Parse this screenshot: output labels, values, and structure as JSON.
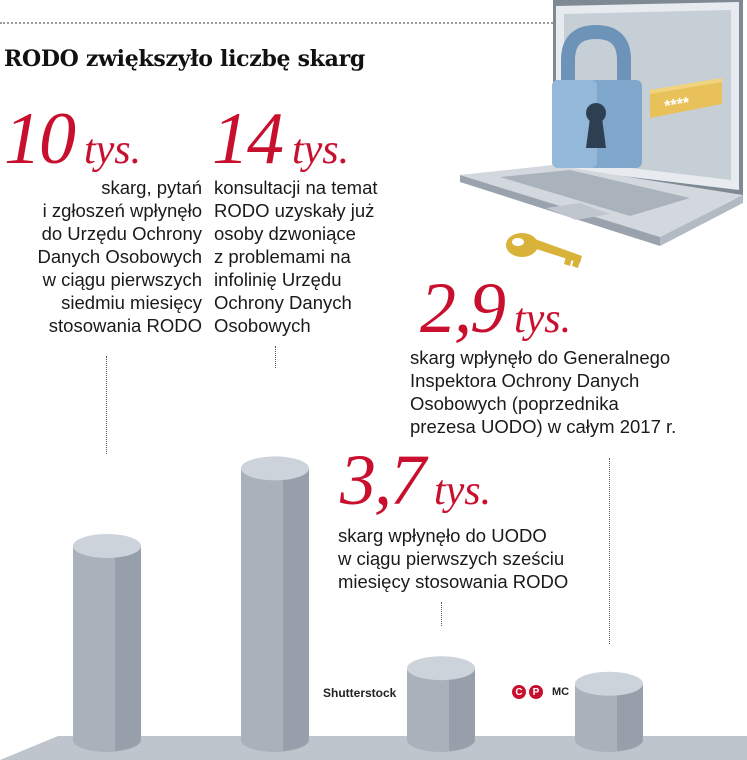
{
  "headline": "RODO zwiększyło liczbę skarg",
  "stats": [
    {
      "value": "10",
      "unit": "tys.",
      "lines": [
        "skarg, pytań",
        "i zgłoszeń wpłynęło",
        "do Urzędu Ochrony",
        "Danych Osobowych",
        "w ciągu pierwszych",
        "siedmiu miesięcy",
        "stosowania RODO"
      ]
    },
    {
      "value": "14",
      "unit": "tys.",
      "lines": [
        "konsultacji na temat",
        "RODO uzyskały już",
        "osoby dzwoniące",
        "z problemami na",
        "infolinię Urzędu",
        "Ochrony Danych",
        "Osobowych"
      ]
    },
    {
      "value": "2,9",
      "unit": "tys.",
      "lines": [
        "skarg wpłynęło do Generalnego",
        "Inspektora Ochrony Danych",
        "Osobowych (poprzednika",
        "prezesa UODO) w całym 2017 r."
      ]
    },
    {
      "value": "3,7",
      "unit": "tys.",
      "lines": [
        "skarg wpłynęło do UODO",
        "w ciągu pierwszych sześciu",
        "miesięcy stosowania RODO"
      ]
    }
  ],
  "credits": {
    "photo": "Shutterstock",
    "c_mark": "C",
    "p_mark": "P",
    "author": "MC"
  },
  "illustration": {
    "password_mask": "****",
    "icons": [
      "laptop-icon",
      "padlock-icon",
      "key-icon"
    ]
  },
  "colors": {
    "accent": "#c8102e",
    "cylinder": "#a9b1ba",
    "cylinder_top": "#cdd3da"
  },
  "chart_data": {
    "type": "bar",
    "categories": [
      "10 tys.",
      "14 tys.",
      "3,7 tys.",
      "2,9 tys."
    ],
    "values": [
      10,
      14,
      3.7,
      2.9
    ],
    "title": "RODO zwiększyło liczbę skarg",
    "xlabel": "",
    "ylabel": "",
    "unit": "tys."
  }
}
